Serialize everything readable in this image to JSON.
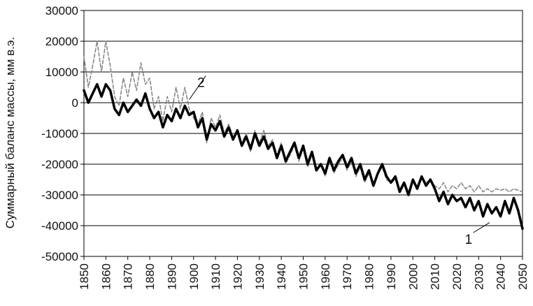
{
  "chart_data": {
    "type": "line",
    "title": "",
    "xlabel": "",
    "ylabel": "Суммарный баланс массы, мм в.э.",
    "xlim": [
      1850,
      2050
    ],
    "ylim": [
      -50000,
      30000
    ],
    "x_ticks": [
      1850,
      1860,
      1870,
      1880,
      1890,
      1900,
      1910,
      1920,
      1930,
      1940,
      1950,
      1960,
      1970,
      1980,
      1990,
      2000,
      2010,
      2020,
      2030,
      2040,
      2050
    ],
    "y_ticks": [
      30000,
      20000,
      10000,
      0,
      -10000,
      -20000,
      -30000,
      -40000,
      -50000
    ],
    "grid": "horizontal",
    "legend": "none",
    "series": [
      {
        "label": "1",
        "style": "thick solid",
        "color": "#000000",
        "x": [
          1850,
          1852,
          1854,
          1856,
          1858,
          1860,
          1862,
          1864,
          1866,
          1868,
          1870,
          1872,
          1874,
          1876,
          1878,
          1880,
          1882,
          1884,
          1886,
          1888,
          1890,
          1892,
          1894,
          1896,
          1898,
          1900,
          1902,
          1904,
          1906,
          1908,
          1910,
          1912,
          1914,
          1916,
          1918,
          1920,
          1922,
          1924,
          1926,
          1928,
          1930,
          1932,
          1934,
          1936,
          1938,
          1940,
          1942,
          1944,
          1946,
          1948,
          1950,
          1952,
          1954,
          1956,
          1958,
          1960,
          1962,
          1964,
          1966,
          1968,
          1970,
          1972,
          1974,
          1976,
          1978,
          1980,
          1982,
          1984,
          1986,
          1988,
          1990,
          1992,
          1994,
          1996,
          1998,
          2000,
          2002,
          2004,
          2006,
          2008,
          2010,
          2012,
          2014,
          2016,
          2018,
          2020,
          2022,
          2024,
          2026,
          2028,
          2030,
          2032,
          2034,
          2036,
          2038,
          2040,
          2042,
          2044,
          2046,
          2048,
          2050
        ],
        "values": [
          4000,
          0,
          3000,
          6000,
          2000,
          6000,
          4000,
          -2000,
          -4000,
          0,
          -3000,
          -1000,
          1000,
          -1000,
          3000,
          -2000,
          -5000,
          -3000,
          -8000,
          -4000,
          -6000,
          -2000,
          -5000,
          -1000,
          -4000,
          -3000,
          -8000,
          -5000,
          -12000,
          -7000,
          -9000,
          -6000,
          -11000,
          -8000,
          -12000,
          -9000,
          -14000,
          -11000,
          -15000,
          -10000,
          -14000,
          -11000,
          -15000,
          -13000,
          -18000,
          -14000,
          -19000,
          -16000,
          -13000,
          -18000,
          -14000,
          -20000,
          -16000,
          -22000,
          -20000,
          -23000,
          -18000,
          -22000,
          -19000,
          -17000,
          -21000,
          -18000,
          -23000,
          -20000,
          -25000,
          -22000,
          -27000,
          -23000,
          -20000,
          -24000,
          -26000,
          -24000,
          -29000,
          -26000,
          -30000,
          -25000,
          -28000,
          -24000,
          -27000,
          -25000,
          -28000,
          -32000,
          -29000,
          -33000,
          -30000,
          -32000,
          -31000,
          -34000,
          -31000,
          -35000,
          -32000,
          -37000,
          -33000,
          -36000,
          -34000,
          -37000,
          -32000,
          -36000,
          -31000,
          -35000,
          -41000
        ]
      },
      {
        "label": "2",
        "style": "dashed",
        "color": "#888888",
        "x": [
          1850,
          1852,
          1854,
          1856,
          1858,
          1860,
          1862,
          1864,
          1866,
          1868,
          1870,
          1872,
          1874,
          1876,
          1878,
          1880,
          1882,
          1884,
          1886,
          1888,
          1890,
          1892,
          1894,
          1896,
          1898,
          1900,
          1902,
          1904,
          1906,
          1908,
          1910,
          1912,
          1914,
          1916,
          1918,
          1920,
          1922,
          1924,
          1926,
          1928,
          1930,
          1932,
          1934,
          1936,
          1938,
          1940,
          1942,
          1944,
          1946,
          1948,
          1950,
          1952,
          1954,
          1956,
          1958,
          1960,
          1962,
          1964,
          1966,
          1968,
          1970,
          1972,
          1974,
          1976,
          1978,
          1980,
          1982,
          1984,
          1986,
          1988,
          1990,
          1992,
          1994,
          1996,
          1998,
          2000,
          2002,
          2004,
          2006,
          2008,
          2010,
          2012,
          2014,
          2016,
          2018,
          2020,
          2022,
          2024,
          2026,
          2028,
          2030,
          2032,
          2034,
          2036,
          2038,
          2040,
          2042,
          2044,
          2046,
          2048,
          2050
        ],
        "values": [
          15000,
          5000,
          12000,
          20000,
          10000,
          20000,
          12000,
          2000,
          -1000,
          8000,
          2000,
          10000,
          4000,
          13000,
          6000,
          8000,
          -2000,
          2000,
          -6000,
          2000,
          -3000,
          5000,
          -2000,
          5000,
          -2000,
          -5000,
          -7000,
          -3000,
          -13000,
          -5000,
          -8000,
          -4000,
          -10000,
          -7000,
          -11000,
          -10000,
          -13000,
          -10000,
          -16000,
          -9000,
          -13000,
          -9000,
          -14000,
          -12000,
          -17000,
          -13000,
          -20000,
          -17000,
          -14000,
          -19000,
          -15000,
          -21000,
          -17000,
          -22000,
          -20000,
          -24000,
          -19000,
          -23000,
          -20000,
          -18000,
          -22000,
          -19000,
          -24000,
          -21000,
          -26000,
          -23000,
          -26000,
          -23000,
          -21000,
          -25000,
          -26000,
          -25000,
          -28000,
          -26000,
          -29000,
          -26000,
          -27000,
          -24000,
          -26000,
          -25000,
          -27000,
          -28000,
          -26000,
          -29000,
          -27000,
          -28000,
          -26000,
          -28000,
          -27000,
          -29000,
          -27000,
          -29000,
          -28000,
          -29000,
          -28000,
          -28500,
          -28000,
          -29000,
          -28000,
          -28500,
          -29000
        ]
      }
    ],
    "annotations": [
      {
        "text": "1",
        "x": 2025,
        "y": -45000,
        "target_x": 2035,
        "target_y": -39000
      },
      {
        "text": "2",
        "x": 1903,
        "y": 6000,
        "target_x": 1898,
        "target_y": 1000
      }
    ]
  }
}
